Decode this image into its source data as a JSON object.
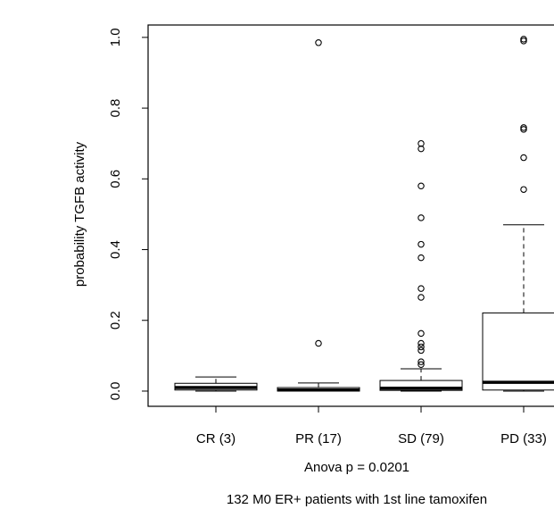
{
  "chart_data": {
    "type": "box",
    "ylabel": "probability TGFB activity",
    "xlabel": "Anova p = 0.0201",
    "subtitle": "132 M0 ER+ patients with 1st line tamoxifen",
    "categories": [
      "CR (3)",
      "PR (17)",
      "SD (79)",
      "PD (33)"
    ],
    "boxes": [
      {
        "whisker_low": 0,
        "q1": 0.003,
        "median": 0.01,
        "q3": 0.022,
        "whisker_high": 0.04,
        "outliers": []
      },
      {
        "whisker_low": 0,
        "q1": 0,
        "median": 0.003,
        "q3": 0.01,
        "whisker_high": 0.023,
        "outliers": [
          0.985,
          0.135
        ]
      },
      {
        "whisker_low": 0,
        "q1": 0.002,
        "median": 0.008,
        "q3": 0.03,
        "whisker_high": 0.063,
        "outliers": [
          0.7,
          0.685,
          0.58,
          0.49,
          0.415,
          0.377,
          0.29,
          0.265,
          0.163,
          0.135,
          0.125,
          0.115,
          0.083,
          0.075
        ]
      },
      {
        "whisker_low": 0,
        "q1": 0.003,
        "median": 0.025,
        "q3": 0.221,
        "whisker_high": 0.47,
        "outliers": [
          0.995,
          0.99,
          0.745,
          0.74,
          0.66,
          0.57
        ]
      }
    ],
    "color": "#000000",
    "ylim": [
      -0.043,
      1.035
    ],
    "yticks": [
      {
        "value": 0,
        "label": "0.0"
      },
      0.2,
      0.4,
      0.6,
      0.8,
      {
        "value": 1,
        "label": "1.0"
      }
    ]
  }
}
